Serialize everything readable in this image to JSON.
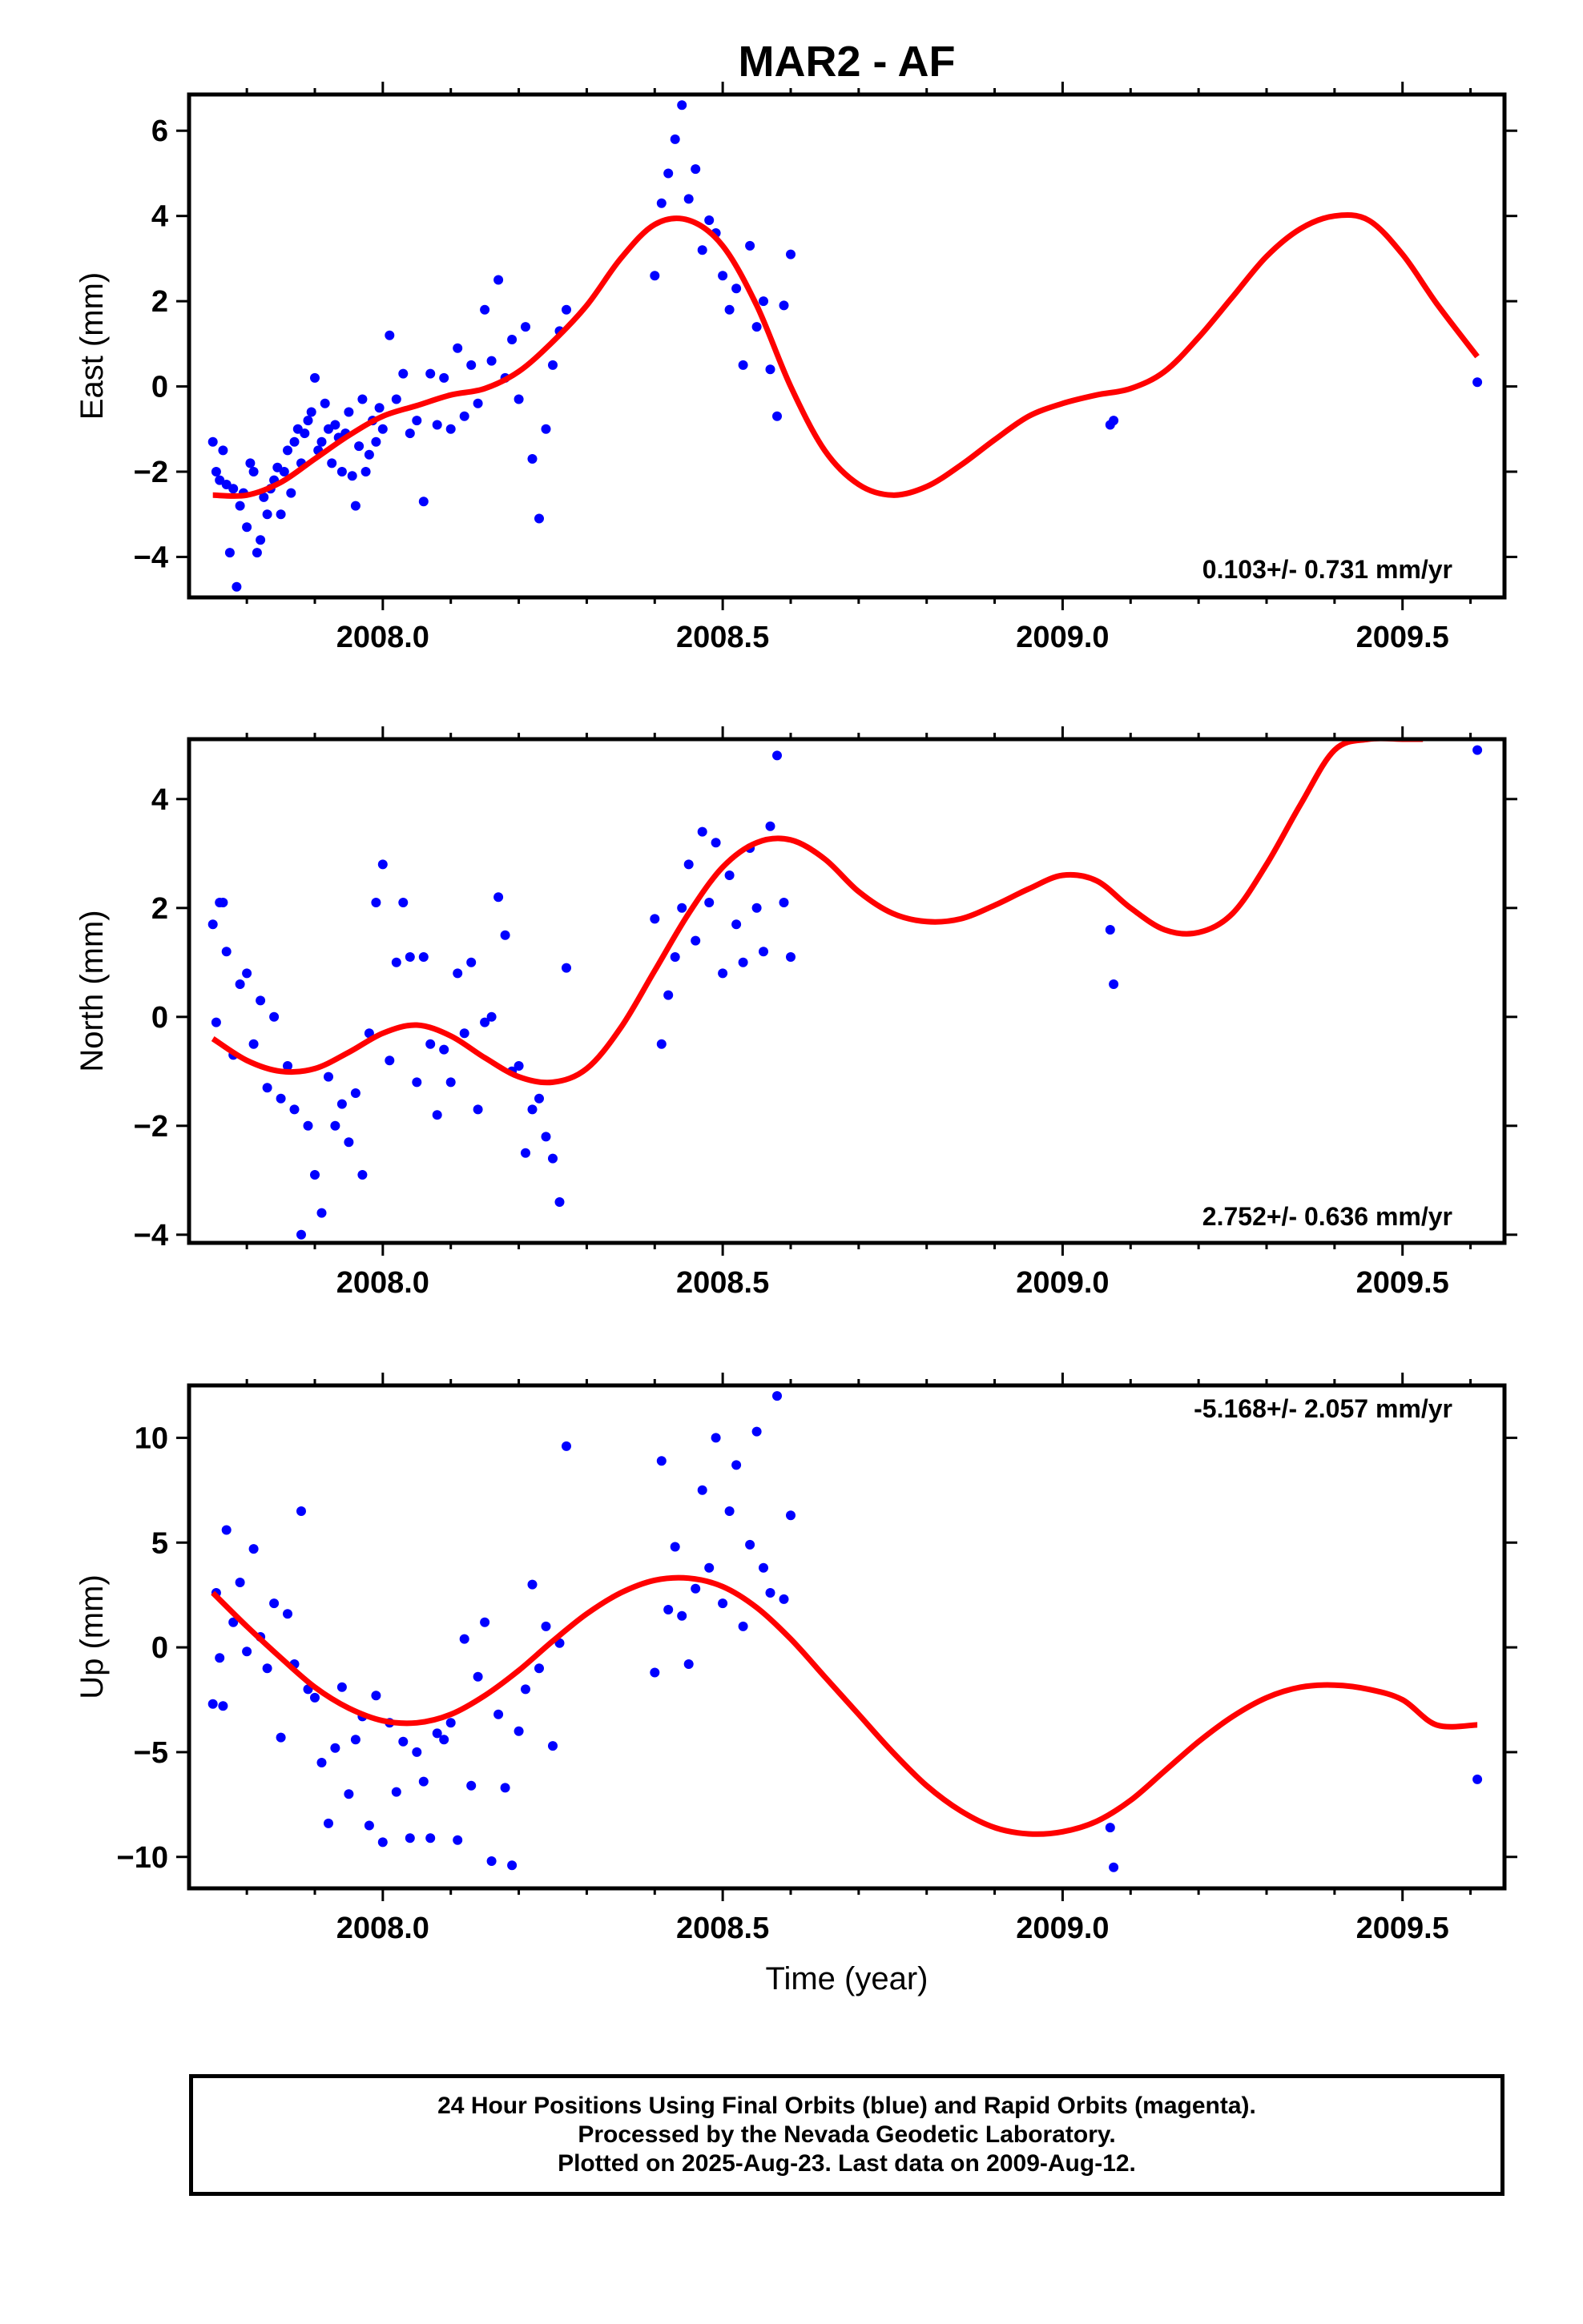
{
  "figure": {
    "title": "MAR2 - AF",
    "xlabel": "Time (year)",
    "caption": [
      "24 Hour Positions Using Final Orbits (blue) and Rapid Orbits (magenta).",
      "Processed by the Nevada Geodetic Laboratory.",
      "Plotted on 2025-Aug-23. Last data on 2009-Aug-12."
    ],
    "colors": {
      "data": "#0000ff",
      "model": "#ff0000",
      "frame": "#000000"
    }
  },
  "chart_data": [
    {
      "type": "scatter",
      "title": "MAR2 - AF",
      "xlabel": "",
      "ylabel": "East (mm)",
      "xlim": [
        2007.715,
        2009.65
      ],
      "ylim": [
        -4.95,
        6.85
      ],
      "xticks": [
        "2008.0",
        "2008.5",
        "2009.0",
        "2009.5"
      ],
      "yticks": [
        "−4",
        "−2",
        "0",
        "2",
        "4",
        "6"
      ],
      "annotation": "0.103+/- 0.731 mm/yr",
      "grid": false,
      "series": [
        {
          "kind": "points",
          "x": [
            2007.75,
            2007.755,
            2007.76,
            2007.765,
            2007.77,
            2007.775,
            2007.78,
            2007.785,
            2007.79,
            2007.795,
            2007.8,
            2007.805,
            2007.81,
            2007.815,
            2007.82,
            2007.825,
            2007.83,
            2007.835,
            2007.84,
            2007.845,
            2007.85,
            2007.855,
            2007.86,
            2007.865,
            2007.87,
            2007.875,
            2007.88,
            2007.885,
            2007.89,
            2007.895,
            2007.9,
            2007.905,
            2007.91,
            2007.915,
            2007.92,
            2007.925,
            2007.93,
            2007.935,
            2007.94,
            2007.945,
            2007.95,
            2007.955,
            2007.96,
            2007.965,
            2007.97,
            2007.975,
            2007.98,
            2007.985,
            2007.99,
            2007.995,
            2008.0,
            2008.01,
            2008.02,
            2008.03,
            2008.04,
            2008.05,
            2008.06,
            2008.07,
            2008.08,
            2008.09,
            2008.1,
            2008.11,
            2008.12,
            2008.13,
            2008.14,
            2008.15,
            2008.16,
            2008.17,
            2008.18,
            2008.19,
            2008.2,
            2008.21,
            2008.22,
            2008.23,
            2008.24,
            2008.25,
            2008.26,
            2008.27,
            2008.4,
            2008.41,
            2008.42,
            2008.43,
            2008.44,
            2008.45,
            2008.46,
            2008.47,
            2008.48,
            2008.49,
            2008.5,
            2008.51,
            2008.52,
            2008.53,
            2008.54,
            2008.55,
            2008.56,
            2008.57,
            2008.58,
            2008.59,
            2008.6,
            2009.07,
            2009.075,
            2009.61
          ],
          "y": [
            -1.3,
            -2.0,
            -2.2,
            -1.5,
            -2.3,
            -3.9,
            -2.4,
            -4.7,
            -2.8,
            -2.5,
            -3.3,
            -1.8,
            -2.0,
            -3.9,
            -3.6,
            -2.6,
            -3.0,
            -2.4,
            -2.2,
            -1.9,
            -3.0,
            -2.0,
            -1.5,
            -2.5,
            -1.3,
            -1.0,
            -1.8,
            -1.1,
            -0.8,
            -0.6,
            0.2,
            -1.5,
            -1.3,
            -0.4,
            -1.0,
            -1.8,
            -0.9,
            -1.2,
            -2.0,
            -1.1,
            -0.6,
            -2.1,
            -2.8,
            -1.4,
            -0.3,
            -2.0,
            -1.6,
            -0.8,
            -1.3,
            -0.5,
            -1.0,
            1.2,
            -0.3,
            0.3,
            -1.1,
            -0.8,
            -2.7,
            0.3,
            -0.9,
            0.2,
            -1.0,
            0.9,
            -0.7,
            0.5,
            -0.4,
            1.8,
            0.6,
            2.5,
            0.2,
            1.1,
            -0.3,
            1.4,
            -1.7,
            -3.1,
            -1.0,
            0.5,
            1.3,
            1.8,
            2.6,
            4.3,
            5.0,
            5.8,
            6.6,
            4.4,
            5.1,
            3.2,
            3.9,
            3.6,
            2.6,
            1.8,
            2.3,
            0.5,
            3.3,
            1.4,
            2.0,
            0.4,
            -0.7,
            1.9,
            3.1,
            -0.9,
            -0.8,
            0.1
          ]
        },
        {
          "kind": "model",
          "x": [
            2007.75,
            2007.8,
            2007.85,
            2007.9,
            2007.95,
            2008.0,
            2008.05,
            2008.1,
            2008.15,
            2008.2,
            2008.25,
            2008.3,
            2008.35,
            2008.4,
            2008.45,
            2008.5,
            2008.55,
            2008.6,
            2008.65,
            2008.7,
            2008.75,
            2008.8,
            2008.85,
            2008.9,
            2008.95,
            2009.0,
            2009.05,
            2009.1,
            2009.15,
            2009.2,
            2009.25,
            2009.3,
            2009.35,
            2009.4,
            2009.45,
            2009.5,
            2009.55,
            2009.61
          ],
          "y": [
            -2.55,
            -2.55,
            -2.25,
            -1.7,
            -1.15,
            -0.7,
            -0.45,
            -0.2,
            -0.05,
            0.35,
            1.05,
            1.9,
            3.0,
            3.8,
            3.9,
            3.3,
            1.9,
            0.0,
            -1.5,
            -2.3,
            -2.55,
            -2.35,
            -1.85,
            -1.25,
            -0.7,
            -0.4,
            -0.2,
            -0.05,
            0.35,
            1.15,
            2.1,
            3.05,
            3.7,
            4.0,
            3.9,
            3.1,
            1.95,
            0.7
          ]
        }
      ]
    },
    {
      "type": "scatter",
      "title": "",
      "xlabel": "",
      "ylabel": "North (mm)",
      "xlim": [
        2007.715,
        2009.65
      ],
      "ylim": [
        -4.15,
        5.1
      ],
      "xticks": [
        "2008.0",
        "2008.5",
        "2009.0",
        "2009.5"
      ],
      "yticks": [
        "−4",
        "−2",
        "0",
        "2",
        "4"
      ],
      "annotation": "2.752+/- 0.636 mm/yr",
      "grid": false,
      "series": [
        {
          "kind": "points",
          "x": [
            2007.75,
            2007.755,
            2007.76,
            2007.765,
            2007.77,
            2007.78,
            2007.79,
            2007.8,
            2007.81,
            2007.82,
            2007.83,
            2007.84,
            2007.85,
            2007.86,
            2007.87,
            2007.88,
            2007.89,
            2007.9,
            2007.91,
            2007.92,
            2007.93,
            2007.94,
            2007.95,
            2007.96,
            2007.97,
            2007.98,
            2007.99,
            2008.0,
            2008.01,
            2008.02,
            2008.03,
            2008.04,
            2008.05,
            2008.06,
            2008.07,
            2008.08,
            2008.09,
            2008.1,
            2008.11,
            2008.12,
            2008.13,
            2008.14,
            2008.15,
            2008.16,
            2008.17,
            2008.18,
            2008.19,
            2008.2,
            2008.21,
            2008.22,
            2008.23,
            2008.24,
            2008.25,
            2008.26,
            2008.27,
            2008.4,
            2008.41,
            2008.42,
            2008.43,
            2008.44,
            2008.45,
            2008.46,
            2008.47,
            2008.48,
            2008.49,
            2008.5,
            2008.51,
            2008.52,
            2008.53,
            2008.54,
            2008.55,
            2008.56,
            2008.57,
            2008.58,
            2008.59,
            2008.6,
            2009.07,
            2009.075,
            2009.61
          ],
          "y": [
            1.7,
            -0.1,
            2.1,
            2.1,
            1.2,
            -0.7,
            0.6,
            0.8,
            -0.5,
            0.3,
            -1.3,
            0.0,
            -1.5,
            -0.9,
            -1.7,
            -4.0,
            -2.0,
            -2.9,
            -3.6,
            -1.1,
            -2.0,
            -1.6,
            -2.3,
            -1.4,
            -2.9,
            -0.3,
            2.1,
            2.8,
            -0.8,
            1.0,
            2.1,
            1.1,
            -1.2,
            1.1,
            -0.5,
            -1.8,
            -0.6,
            -1.2,
            0.8,
            -0.3,
            1.0,
            -1.7,
            -0.1,
            0.0,
            2.2,
            1.5,
            -1.0,
            -0.9,
            -2.5,
            -1.7,
            -1.5,
            -2.2,
            -2.6,
            -3.4,
            0.9,
            1.8,
            -0.5,
            0.4,
            1.1,
            2.0,
            2.8,
            1.4,
            3.4,
            2.1,
            3.2,
            0.8,
            2.6,
            1.7,
            1.0,
            3.1,
            2.0,
            1.2,
            3.5,
            4.8,
            2.1,
            1.1,
            1.6,
            0.6,
            4.9
          ]
        },
        {
          "kind": "model",
          "x": [
            2007.75,
            2007.8,
            2007.85,
            2007.9,
            2007.95,
            2008.0,
            2008.05,
            2008.1,
            2008.15,
            2008.2,
            2008.25,
            2008.3,
            2008.35,
            2008.4,
            2008.45,
            2008.5,
            2008.55,
            2008.6,
            2008.65,
            2008.7,
            2008.75,
            2008.8,
            2008.85,
            2008.9,
            2008.95,
            2009.0,
            2009.05,
            2009.1,
            2009.15,
            2009.2,
            2009.25,
            2009.3,
            2009.35,
            2009.4,
            2009.45,
            2009.5,
            2009.53
          ],
          "y": [
            -0.4,
            -0.8,
            -1.0,
            -0.95,
            -0.65,
            -0.3,
            -0.15,
            -0.35,
            -0.75,
            -1.1,
            -1.2,
            -0.95,
            -0.2,
            0.85,
            1.9,
            2.75,
            3.2,
            3.25,
            2.9,
            2.3,
            1.9,
            1.75,
            1.8,
            2.05,
            2.35,
            2.6,
            2.5,
            2.0,
            1.6,
            1.55,
            1.9,
            2.8,
            3.9,
            4.9,
            5.1,
            5.1,
            5.1
          ]
        }
      ]
    },
    {
      "type": "scatter",
      "title": "",
      "xlabel": "Time (year)",
      "ylabel": "Up (mm)",
      "xlim": [
        2007.715,
        2009.65
      ],
      "ylim": [
        -11.5,
        12.5
      ],
      "xticks": [
        "2008.0",
        "2008.5",
        "2009.0",
        "2009.5"
      ],
      "yticks": [
        "−10",
        "−5",
        "0",
        "5",
        "10"
      ],
      "annotation": "-5.168+/- 2.057 mm/yr",
      "grid": false,
      "series": [
        {
          "kind": "points",
          "x": [
            2007.75,
            2007.755,
            2007.76,
            2007.765,
            2007.77,
            2007.78,
            2007.79,
            2007.8,
            2007.81,
            2007.82,
            2007.83,
            2007.84,
            2007.85,
            2007.86,
            2007.87,
            2007.88,
            2007.89,
            2007.9,
            2007.91,
            2007.92,
            2007.93,
            2007.94,
            2007.95,
            2007.96,
            2007.97,
            2007.98,
            2007.99,
            2008.0,
            2008.01,
            2008.02,
            2008.03,
            2008.04,
            2008.05,
            2008.06,
            2008.07,
            2008.08,
            2008.09,
            2008.1,
            2008.11,
            2008.12,
            2008.13,
            2008.14,
            2008.15,
            2008.16,
            2008.17,
            2008.18,
            2008.19,
            2008.2,
            2008.21,
            2008.22,
            2008.23,
            2008.24,
            2008.25,
            2008.26,
            2008.27,
            2008.4,
            2008.41,
            2008.42,
            2008.43,
            2008.44,
            2008.45,
            2008.46,
            2008.47,
            2008.48,
            2008.49,
            2008.5,
            2008.51,
            2008.52,
            2008.53,
            2008.54,
            2008.55,
            2008.56,
            2008.57,
            2008.58,
            2008.59,
            2008.6,
            2009.07,
            2009.075,
            2009.61
          ],
          "y": [
            -2.7,
            2.6,
            -0.5,
            -2.8,
            5.6,
            1.2,
            3.1,
            -0.2,
            4.7,
            0.5,
            -1.0,
            2.1,
            -4.3,
            1.6,
            -0.8,
            6.5,
            -2.0,
            -2.4,
            -5.5,
            -8.4,
            -4.8,
            -1.9,
            -7.0,
            -4.4,
            -3.3,
            -8.5,
            -2.3,
            -9.3,
            -3.6,
            -6.9,
            -4.5,
            -9.1,
            -5.0,
            -6.4,
            -9.1,
            -4.1,
            -4.4,
            -3.6,
            -9.2,
            0.4,
            -6.6,
            -1.4,
            1.2,
            -10.2,
            -3.2,
            -6.7,
            -10.4,
            -4.0,
            -2.0,
            3.0,
            -1.0,
            1.0,
            -4.7,
            0.2,
            9.6,
            -1.2,
            8.9,
            1.8,
            4.8,
            1.5,
            -0.8,
            2.8,
            7.5,
            3.8,
            10.0,
            2.1,
            6.5,
            8.7,
            1.0,
            4.9,
            10.3,
            3.8,
            2.6,
            12.0,
            2.3,
            6.3,
            -8.6,
            -10.5,
            -6.3
          ]
        },
        {
          "kind": "model",
          "x": [
            2007.75,
            2007.8,
            2007.85,
            2007.9,
            2007.95,
            2008.0,
            2008.05,
            2008.1,
            2008.15,
            2008.2,
            2008.25,
            2008.3,
            2008.35,
            2008.4,
            2008.45,
            2008.5,
            2008.55,
            2008.6,
            2008.65,
            2008.7,
            2008.75,
            2008.8,
            2008.85,
            2008.9,
            2008.95,
            2009.0,
            2009.05,
            2009.1,
            2009.15,
            2009.2,
            2009.25,
            2009.3,
            2009.35,
            2009.4,
            2009.45,
            2009.5,
            2009.55,
            2009.61
          ],
          "y": [
            2.6,
            1.0,
            -0.5,
            -1.9,
            -2.9,
            -3.5,
            -3.6,
            -3.2,
            -2.3,
            -1.1,
            0.3,
            1.6,
            2.6,
            3.2,
            3.3,
            2.9,
            1.9,
            0.4,
            -1.4,
            -3.2,
            -5.0,
            -6.6,
            -7.8,
            -8.6,
            -8.9,
            -8.8,
            -8.3,
            -7.3,
            -5.9,
            -4.5,
            -3.3,
            -2.4,
            -1.9,
            -1.8,
            -2.0,
            -2.5,
            -3.7,
            -3.7
          ]
        }
      ]
    }
  ]
}
